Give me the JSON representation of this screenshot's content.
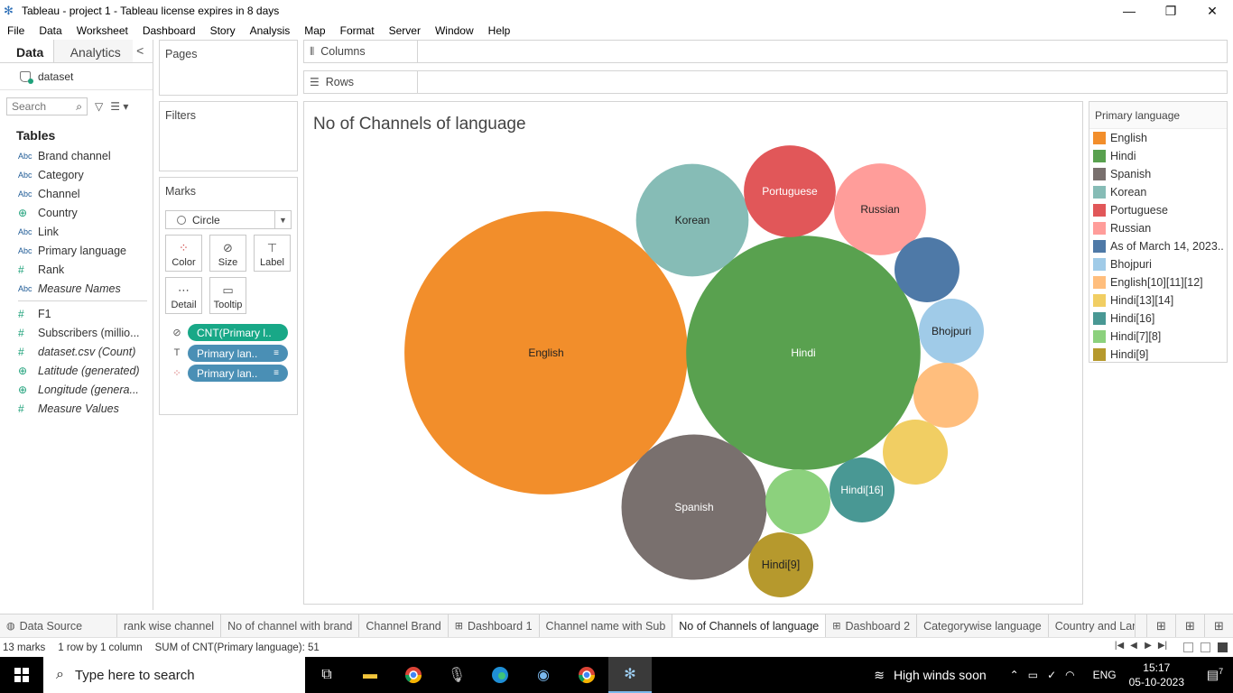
{
  "window": {
    "title": "Tableau - project 1 - Tableau license expires in 8 days",
    "minimize": "—",
    "restore": "❐",
    "close": "✕"
  },
  "menu": [
    "File",
    "Data",
    "Worksheet",
    "Dashboard",
    "Story",
    "Analysis",
    "Map",
    "Format",
    "Server",
    "Window",
    "Help"
  ],
  "datapane": {
    "tab_data": "Data",
    "tab_analytics": "Analytics",
    "collapse": "<",
    "datasource": "dataset",
    "search_placeholder": "Search",
    "tables_header": "Tables",
    "dimensions": [
      {
        "type": "Abc",
        "name": "Brand channel"
      },
      {
        "type": "Abc",
        "name": "Category"
      },
      {
        "type": "Abc",
        "name": "Channel"
      },
      {
        "type": "geo",
        "name": "Country"
      },
      {
        "type": "Abc",
        "name": "Link"
      },
      {
        "type": "Abc",
        "name": "Primary language"
      },
      {
        "type": "#",
        "name": "Rank"
      },
      {
        "type": "Abc",
        "name": "Measure Names"
      }
    ],
    "measures": [
      {
        "type": "#",
        "name": "F1"
      },
      {
        "type": "#",
        "name": "Subscribers (millio..."
      },
      {
        "type": "#",
        "name": "dataset.csv (Count)"
      },
      {
        "type": "geo",
        "name": "Latitude (generated)"
      },
      {
        "type": "geo",
        "name": "Longitude (genera..."
      },
      {
        "type": "#",
        "name": "Measure Values"
      }
    ]
  },
  "cards": {
    "pages": "Pages",
    "filters": "Filters",
    "marks": "Marks",
    "mark_type": "Circle",
    "buttons": {
      "color": "Color",
      "size": "Size",
      "label": "Label",
      "detail": "Detail",
      "tooltip": "Tooltip"
    },
    "pills": [
      {
        "text": "CNT(Primary l..",
        "color": "#18a887"
      },
      {
        "text": "Primary lan..",
        "color": "#4a8fb5"
      },
      {
        "text": "Primary lan..",
        "color": "#4a8fb5"
      }
    ]
  },
  "shelves": {
    "columns": "Columns",
    "rows": "Rows"
  },
  "view": {
    "title": "No of Channels of language"
  },
  "legend": {
    "title": "Primary language",
    "items": [
      {
        "name": "English",
        "color": "#f28e2b"
      },
      {
        "name": "Hindi",
        "color": "#59a14f"
      },
      {
        "name": "Spanish",
        "color": "#79706e"
      },
      {
        "name": "Korean",
        "color": "#86bcb6"
      },
      {
        "name": "Portuguese",
        "color": "#e15759"
      },
      {
        "name": "Russian",
        "color": "#ff9d9a"
      },
      {
        "name": "As of March 14, 2023..",
        "color": "#4e79a7"
      },
      {
        "name": "Bhojpuri",
        "color": "#a0cbe8"
      },
      {
        "name": "English[10][11][12]",
        "color": "#ffbe7d"
      },
      {
        "name": "Hindi[13][14]",
        "color": "#f1ce63"
      },
      {
        "name": "Hindi[16]",
        "color": "#499894"
      },
      {
        "name": "Hindi[7][8]",
        "color": "#8cd17d"
      },
      {
        "name": "Hindi[9]",
        "color": "#b6992d"
      }
    ]
  },
  "chart_data": {
    "type": "packed-bubble",
    "title": "No of Channels of language",
    "measure": "CNT(Primary language)",
    "total": 51,
    "bubbles": [
      {
        "name": "English",
        "value": 19,
        "label": "English",
        "color": "#f28e2b"
      },
      {
        "name": "Hindi",
        "value": 13,
        "label": "Hindi",
        "color": "#59a14f"
      },
      {
        "name": "Spanish",
        "value": 5,
        "label": "Spanish",
        "color": "#79706e"
      },
      {
        "name": "Korean",
        "value": 3,
        "label": "Korean",
        "color": "#86bcb6"
      },
      {
        "name": "Portuguese",
        "value": 2,
        "label": "Portuguese",
        "color": "#e15759"
      },
      {
        "name": "Russian",
        "value": 2,
        "label": "Russian",
        "color": "#ff9d9a"
      },
      {
        "name": "As of March 14, 2023..",
        "value": 1,
        "label": "",
        "color": "#4e79a7"
      },
      {
        "name": "Bhojpuri",
        "value": 1,
        "label": "Bhojpuri",
        "color": "#a0cbe8"
      },
      {
        "name": "English[10][11][12]",
        "value": 1,
        "label": "",
        "color": "#ffbe7d"
      },
      {
        "name": "Hindi[13][14]",
        "value": 1,
        "label": "",
        "color": "#f1ce63"
      },
      {
        "name": "Hindi[16]",
        "value": 1,
        "label": "Hindi[16]",
        "color": "#499894"
      },
      {
        "name": "Hindi[7][8]",
        "value": 1,
        "label": "",
        "color": "#8cd17d"
      },
      {
        "name": "Hindi[9]",
        "value": 1,
        "label": "Hindi[9]",
        "color": "#b6992d"
      }
    ]
  },
  "sheets": [
    {
      "label": "Data Source",
      "icon": "datasource"
    },
    {
      "label": "rank wise channel",
      "icon": ""
    },
    {
      "label": "No of channel with brand",
      "icon": ""
    },
    {
      "label": "Channel Brand",
      "icon": ""
    },
    {
      "label": "Dashboard 1",
      "icon": "dashboard"
    },
    {
      "label": "Channel name with Sub",
      "icon": ""
    },
    {
      "label": "No of Channels of language",
      "icon": "",
      "active": true
    },
    {
      "label": "Dashboard 2",
      "icon": "dashboard"
    },
    {
      "label": "Categorywise language",
      "icon": ""
    },
    {
      "label": "Country and Lang",
      "icon": ""
    }
  ],
  "status": {
    "marks": "13 marks",
    "rows": "1 row by 1 column",
    "sum": "SUM of CNT(Primary language): 51"
  },
  "taskbar": {
    "search_placeholder": "Type here to search",
    "weather": "High winds soon",
    "lang": "ENG",
    "time": "15:17",
    "date": "05-10-2023",
    "notifications": "7"
  }
}
